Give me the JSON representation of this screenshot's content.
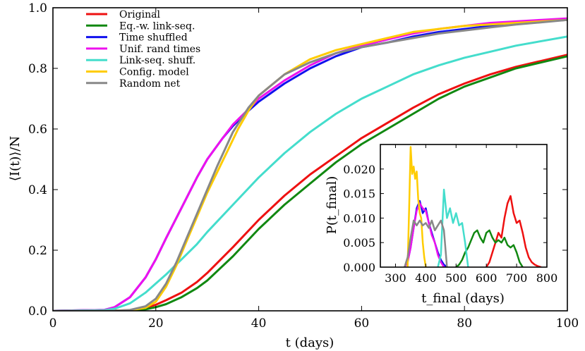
{
  "chart_data": [
    {
      "type": "line",
      "name": "main",
      "xlabel": "t (days)",
      "ylabel": "⟨I(t)⟩/N",
      "xlim": [
        0,
        100
      ],
      "ylim": [
        0,
        1.0
      ],
      "xticks": [
        0,
        20,
        40,
        60,
        80,
        100
      ],
      "yticks": [
        0.0,
        0.2,
        0.4,
        0.6,
        0.8,
        1.0
      ],
      "xtick_labels": [
        "0",
        "20",
        "40",
        "60",
        "80",
        "100"
      ],
      "ytick_labels": [
        "0.0",
        "0.2",
        "0.4",
        "0.6",
        "0.8",
        "1.0"
      ],
      "legend_position": "top-left",
      "series": [
        {
          "name": "Original",
          "color": "#ee1111",
          "x": [
            0,
            10,
            15,
            18,
            20,
            22,
            25,
            28,
            30,
            35,
            40,
            45,
            50,
            55,
            60,
            65,
            70,
            75,
            80,
            85,
            90,
            95,
            100
          ],
          "y": [
            0,
            0,
            0.002,
            0.01,
            0.02,
            0.035,
            0.06,
            0.095,
            0.125,
            0.21,
            0.3,
            0.38,
            0.45,
            0.51,
            0.57,
            0.62,
            0.67,
            0.715,
            0.75,
            0.78,
            0.805,
            0.825,
            0.845
          ]
        },
        {
          "name": "Eq.-w. link-seq.",
          "color": "#118811",
          "x": [
            0,
            10,
            15,
            18,
            20,
            22,
            25,
            28,
            30,
            35,
            40,
            45,
            50,
            55,
            60,
            65,
            70,
            75,
            80,
            85,
            90,
            95,
            100
          ],
          "y": [
            0,
            0,
            0.001,
            0.005,
            0.012,
            0.022,
            0.045,
            0.075,
            0.1,
            0.18,
            0.27,
            0.35,
            0.42,
            0.49,
            0.55,
            0.6,
            0.65,
            0.7,
            0.74,
            0.77,
            0.8,
            0.82,
            0.84
          ]
        },
        {
          "name": "Time shuffled",
          "color": "#1111ee",
          "x": [
            0,
            10,
            12,
            15,
            18,
            20,
            22,
            25,
            28,
            30,
            33,
            35,
            38,
            40,
            45,
            50,
            55,
            60,
            65,
            70,
            75,
            80,
            85,
            90,
            95,
            100
          ],
          "y": [
            0,
            0.003,
            0.012,
            0.045,
            0.11,
            0.17,
            0.24,
            0.34,
            0.44,
            0.5,
            0.57,
            0.61,
            0.66,
            0.69,
            0.75,
            0.8,
            0.84,
            0.87,
            0.885,
            0.905,
            0.92,
            0.93,
            0.94,
            0.95,
            0.955,
            0.96
          ]
        },
        {
          "name": "Unif. rand times",
          "color": "#ee11ee",
          "x": [
            0,
            10,
            12,
            15,
            18,
            20,
            22,
            25,
            28,
            30,
            33,
            35,
            38,
            40,
            45,
            50,
            55,
            60,
            65,
            70,
            75,
            80,
            85,
            90,
            95,
            100
          ],
          "y": [
            0,
            0.003,
            0.012,
            0.045,
            0.11,
            0.17,
            0.24,
            0.34,
            0.44,
            0.5,
            0.57,
            0.615,
            0.665,
            0.7,
            0.76,
            0.81,
            0.85,
            0.875,
            0.895,
            0.915,
            0.93,
            0.94,
            0.95,
            0.955,
            0.96,
            0.965
          ]
        },
        {
          "name": "Link-seq. shuff.",
          "color": "#44ddcc",
          "x": [
            0,
            10,
            12,
            15,
            18,
            20,
            22,
            25,
            28,
            30,
            35,
            40,
            45,
            50,
            55,
            60,
            65,
            70,
            75,
            80,
            85,
            90,
            95,
            100
          ],
          "y": [
            0,
            0.002,
            0.007,
            0.025,
            0.06,
            0.09,
            0.12,
            0.17,
            0.22,
            0.26,
            0.35,
            0.44,
            0.52,
            0.59,
            0.65,
            0.7,
            0.74,
            0.78,
            0.81,
            0.835,
            0.855,
            0.875,
            0.89,
            0.905
          ]
        },
        {
          "name": "Config. model",
          "color": "#ffcc00",
          "x": [
            0,
            12,
            15,
            18,
            20,
            22,
            24,
            26,
            28,
            30,
            32,
            34,
            36,
            38,
            40,
            45,
            50,
            55,
            60,
            65,
            70,
            75,
            80,
            85,
            90,
            95,
            100
          ],
          "y": [
            0,
            0,
            0.002,
            0.01,
            0.03,
            0.08,
            0.15,
            0.23,
            0.31,
            0.39,
            0.46,
            0.53,
            0.6,
            0.66,
            0.71,
            0.78,
            0.83,
            0.86,
            0.88,
            0.9,
            0.92,
            0.93,
            0.94,
            0.945,
            0.95,
            0.955,
            0.96
          ]
        },
        {
          "name": "Random net",
          "color": "#888888",
          "x": [
            0,
            12,
            15,
            18,
            20,
            22,
            24,
            26,
            28,
            30,
            32,
            35,
            38,
            40,
            45,
            50,
            55,
            60,
            65,
            70,
            75,
            80,
            85,
            90,
            95,
            100
          ],
          "y": [
            0,
            0,
            0.003,
            0.015,
            0.04,
            0.09,
            0.16,
            0.24,
            0.32,
            0.4,
            0.48,
            0.59,
            0.67,
            0.71,
            0.78,
            0.82,
            0.85,
            0.87,
            0.885,
            0.9,
            0.915,
            0.925,
            0.935,
            0.945,
            0.952,
            0.96
          ]
        }
      ]
    },
    {
      "type": "line",
      "name": "inset",
      "xlabel": "t_final (days)",
      "ylabel": "P(t_final)",
      "xlim": [
        250,
        800
      ],
      "ylim": [
        0,
        0.025
      ],
      "xticks": [
        300,
        400,
        500,
        600,
        700,
        800
      ],
      "yticks": [
        0.0,
        0.005,
        0.01,
        0.015,
        0.02
      ],
      "xtick_labels": [
        "300",
        "400",
        "500",
        "600",
        "700",
        "800"
      ],
      "ytick_labels": [
        "0.000",
        "0.005",
        "0.010",
        "0.015",
        "0.020"
      ],
      "series": [
        {
          "name": "Original",
          "color": "#ee1111",
          "x": [
            600,
            610,
            620,
            630,
            640,
            650,
            660,
            670,
            680,
            690,
            700,
            710,
            720,
            730,
            740,
            750,
            760,
            770,
            780
          ],
          "y": [
            0,
            0.001,
            0.003,
            0.005,
            0.007,
            0.006,
            0.01,
            0.013,
            0.0145,
            0.011,
            0.009,
            0.0095,
            0.007,
            0.004,
            0.002,
            0.001,
            0.0005,
            0.0002,
            0
          ]
        },
        {
          "name": "Eq.-w. link-seq.",
          "color": "#118811",
          "x": [
            500,
            510,
            520,
            530,
            540,
            550,
            560,
            570,
            580,
            590,
            600,
            610,
            620,
            630,
            640,
            650,
            660,
            670,
            680,
            690,
            700,
            710,
            720
          ],
          "y": [
            0,
            0.0005,
            0.0015,
            0.003,
            0.004,
            0.0055,
            0.007,
            0.0075,
            0.006,
            0.005,
            0.007,
            0.0075,
            0.006,
            0.005,
            0.0055,
            0.005,
            0.006,
            0.0045,
            0.004,
            0.0045,
            0.003,
            0.001,
            0
          ]
        },
        {
          "name": "Time shuffled",
          "color": "#1111ee",
          "x": [
            330,
            340,
            350,
            360,
            370,
            380,
            390,
            400,
            410,
            420,
            430,
            440,
            450,
            460,
            470
          ],
          "y": [
            0,
            0.001,
            0.004,
            0.008,
            0.012,
            0.0135,
            0.011,
            0.012,
            0.009,
            0.007,
            0.005,
            0.003,
            0.0015,
            0.0005,
            0
          ]
        },
        {
          "name": "Unif. rand times",
          "color": "#ee11ee",
          "x": [
            330,
            340,
            350,
            360,
            370,
            380,
            390,
            400,
            410,
            420,
            430,
            440,
            450,
            460
          ],
          "y": [
            0,
            0.001,
            0.004,
            0.008,
            0.0115,
            0.013,
            0.012,
            0.0115,
            0.009,
            0.0065,
            0.005,
            0.0025,
            0.001,
            0
          ]
        },
        {
          "name": "Link-seq. shuff.",
          "color": "#44ddcc",
          "x": [
            440,
            450,
            460,
            470,
            480,
            490,
            500,
            510,
            520,
            530,
            540
          ],
          "y": [
            0,
            0.0025,
            0.0158,
            0.01,
            0.012,
            0.009,
            0.011,
            0.0085,
            0.009,
            0.005,
            0
          ]
        },
        {
          "name": "Config. model",
          "color": "#ffcc00",
          "x": [
            340,
            345,
            350,
            355,
            360,
            365,
            370,
            375,
            380,
            385,
            390,
            395,
            400
          ],
          "y": [
            0,
            0.012,
            0.0245,
            0.019,
            0.0205,
            0.018,
            0.0195,
            0.014,
            0.011,
            0.01,
            0.005,
            0.002,
            0
          ]
        },
        {
          "name": "Random net",
          "color": "#888888",
          "x": [
            330,
            340,
            350,
            360,
            370,
            380,
            390,
            400,
            410,
            420,
            430,
            440,
            450,
            460,
            470
          ],
          "y": [
            0,
            0.002,
            0.006,
            0.0095,
            0.0085,
            0.0095,
            0.0085,
            0.009,
            0.008,
            0.0095,
            0.0075,
            0.0085,
            0.0095,
            0.0075,
            0
          ]
        }
      ]
    }
  ]
}
